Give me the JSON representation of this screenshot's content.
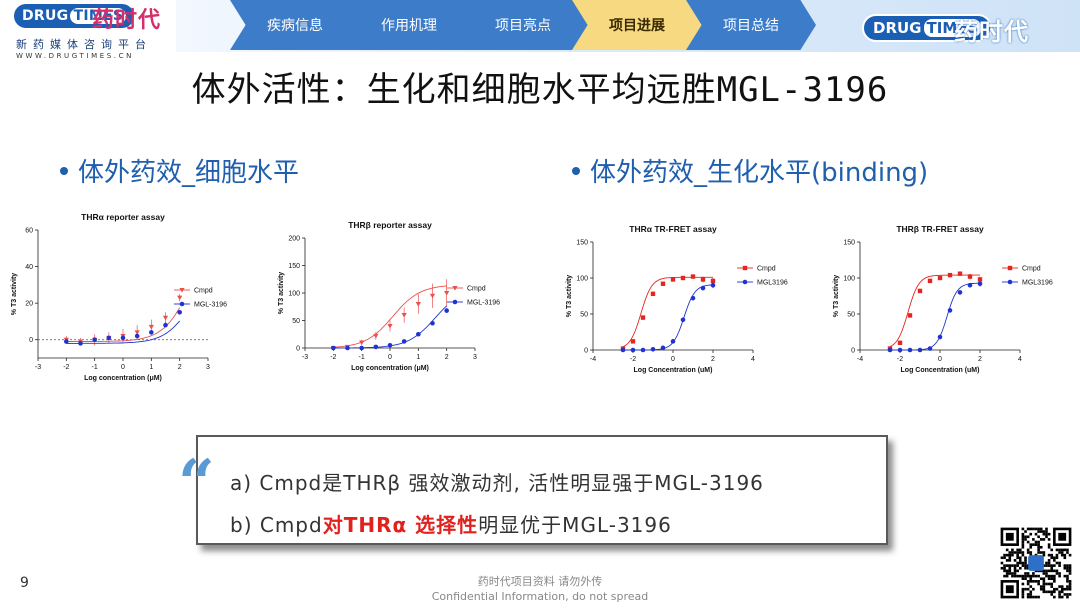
{
  "brand": {
    "left_pill_a": "DRUG",
    "left_pill_b": "TIMES",
    "left_cn": "药时代",
    "left_sub": "新药媒体咨询平台",
    "left_url": "WWW.DRUGTIMES.CN",
    "right_pill_a": "DRUG",
    "right_pill_b": "TIMES",
    "right_cn": "药时代"
  },
  "nav": {
    "tabs": [
      {
        "label": "疾病信息",
        "active": false
      },
      {
        "label": "作用机理",
        "active": false
      },
      {
        "label": "项目亮点",
        "active": false
      },
      {
        "label": "项目进展",
        "active": true
      },
      {
        "label": "项目总结",
        "active": false
      }
    ]
  },
  "title": "体外活性：生化和细胞水平均远胜MGL-3196",
  "sections": {
    "left": "体外药效_细胞水平",
    "right": "体外药效_生化水平(binding)"
  },
  "colors": {
    "nav_tab": "#3d7cc9",
    "nav_active": "#f7d982",
    "cmpd_light": "#e8514e",
    "cmpd_red": "#e52620",
    "mgl_blue": "#1f33d1"
  },
  "chart_data": [
    {
      "type": "line",
      "title": "THRα reporter assay",
      "xlabel": "Log concentration (μM)",
      "ylabel": "% T3 activity",
      "xlim": [
        -3,
        3
      ],
      "ylim": [
        -10,
        60
      ],
      "xticks": [
        "-3",
        "-2",
        "-1",
        "0",
        "1",
        "2",
        "3"
      ],
      "yticks": [
        "0",
        "20",
        "40",
        "60"
      ],
      "baseline": "dashed at 0",
      "legend_position": "right",
      "series": [
        {
          "name": "Cmpd",
          "color": "#e8514e",
          "marker": "triangle-down",
          "x": [
            -2,
            -1.5,
            -1,
            -0.5,
            0,
            0.5,
            1,
            1.5,
            2
          ],
          "y": [
            0,
            -1,
            0,
            1,
            2,
            4,
            7,
            12,
            23
          ],
          "err": [
            2,
            2,
            3,
            3,
            4,
            4,
            4,
            3,
            2
          ]
        },
        {
          "name": "MGL-3196",
          "color": "#1f33d1",
          "marker": "circle",
          "x": [
            -2,
            -1.5,
            -1,
            -0.5,
            0,
            0.5,
            1,
            1.5,
            2
          ],
          "y": [
            -1,
            -2,
            0,
            1,
            1,
            2,
            4,
            8,
            15
          ],
          "err": [
            1,
            1,
            1,
            1,
            1,
            1,
            1,
            1,
            1
          ]
        }
      ]
    },
    {
      "type": "line",
      "title": "THRβ reporter assay",
      "xlabel": "Log concentration (μM)",
      "ylabel": "% T3 activity",
      "xlim": [
        -3,
        3
      ],
      "ylim": [
        0,
        200
      ],
      "xticks": [
        "-3",
        "-2",
        "-1",
        "0",
        "1",
        "2",
        "3"
      ],
      "yticks": [
        "0",
        "50",
        "100",
        "150",
        "200"
      ],
      "baseline": "dashed at 0",
      "legend_position": "right",
      "series": [
        {
          "name": "Cmpd",
          "color": "#e8514e",
          "marker": "triangle-down",
          "x": [
            -2,
            -1.5,
            -1,
            -0.5,
            0,
            0.5,
            1,
            1.5,
            2
          ],
          "y": [
            0,
            2,
            10,
            22,
            40,
            60,
            80,
            95,
            100
          ],
          "err": [
            2,
            3,
            5,
            7,
            10,
            14,
            18,
            22,
            25
          ]
        },
        {
          "name": "MGL-3196",
          "color": "#1f33d1",
          "marker": "circle",
          "x": [
            -2,
            -1.5,
            -1,
            -0.5,
            0,
            0.5,
            1,
            1.5,
            2
          ],
          "y": [
            0,
            0,
            0,
            2,
            5,
            12,
            25,
            45,
            68
          ],
          "err": [
            1,
            1,
            1,
            1,
            2,
            2,
            3,
            3,
            4
          ]
        }
      ]
    },
    {
      "type": "line",
      "title": "THRα TR-FRET assay",
      "xlabel": "Log Concentration (uM)",
      "ylabel": "% T3 activity",
      "xlim": [
        -4,
        4
      ],
      "ylim": [
        0,
        150
      ],
      "xticks": [
        "-4",
        "-2",
        "0",
        "2",
        "4"
      ],
      "yticks": [
        "0",
        "50",
        "100",
        "150"
      ],
      "legend_position": "right",
      "series": [
        {
          "name": "Cmpd",
          "color": "#e52620",
          "marker": "square",
          "x": [
            -2.5,
            -2,
            -1.5,
            -1,
            -0.5,
            0,
            0.5,
            1,
            1.5,
            2
          ],
          "y": [
            2,
            12,
            45,
            78,
            92,
            98,
            100,
            102,
            98,
            96
          ],
          "err": [
            1,
            2,
            3,
            3,
            3,
            3,
            3,
            3,
            4,
            4
          ]
        },
        {
          "name": "MGL3196",
          "color": "#1f33d1",
          "marker": "circle",
          "x": [
            -2.5,
            -2,
            -1.5,
            -1,
            -0.5,
            0,
            0.5,
            1,
            1.5,
            2
          ],
          "y": [
            0,
            0,
            0,
            1,
            3,
            12,
            42,
            72,
            86,
            90
          ],
          "err": [
            1,
            1,
            1,
            1,
            1,
            2,
            3,
            3,
            3,
            4
          ]
        }
      ]
    },
    {
      "type": "line",
      "title": "THRβ TR-FRET assay",
      "xlabel": "Log Concentration (uM)",
      "ylabel": "% T3 activity",
      "xlim": [
        -4,
        4
      ],
      "ylim": [
        0,
        150
      ],
      "xticks": [
        "-4",
        "-2",
        "0",
        "2",
        "4"
      ],
      "yticks": [
        "0",
        "50",
        "100",
        "150"
      ],
      "legend_position": "right",
      "series": [
        {
          "name": "Cmpd",
          "color": "#e52620",
          "marker": "square",
          "x": [
            -2.5,
            -2,
            -1.5,
            -1,
            -0.5,
            0,
            0.5,
            1,
            1.5,
            2
          ],
          "y": [
            2,
            10,
            48,
            82,
            96,
            100,
            104,
            106,
            102,
            98
          ],
          "err": [
            1,
            2,
            3,
            3,
            3,
            3,
            3,
            3,
            4,
            4
          ]
        },
        {
          "name": "MGL3196",
          "color": "#1f33d1",
          "marker": "circle",
          "x": [
            -2.5,
            -2,
            -1.5,
            -1,
            -0.5,
            0,
            0.5,
            1,
            1.5,
            2
          ],
          "y": [
            0,
            0,
            0,
            0,
            2,
            18,
            55,
            80,
            90,
            92
          ],
          "err": [
            1,
            1,
            1,
            1,
            1,
            2,
            3,
            3,
            3,
            4
          ]
        }
      ]
    }
  ],
  "quote": {
    "mark": "“",
    "line1": "a) Cmpd是THRβ 强效激动剂, 活性明显强于MGL-3196",
    "line2_a": "b) Cmpd",
    "line2_red": "对THRα 选择性",
    "line2_b": "明显优于MGL-3196"
  },
  "page_number": "9",
  "footer": {
    "line1": "药时代项目资料 请勿外传",
    "line2": "Confidential Information, do not spread"
  }
}
